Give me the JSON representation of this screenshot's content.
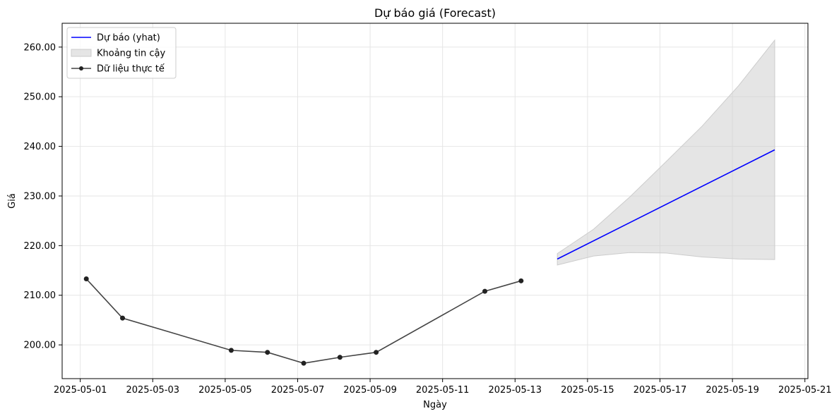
{
  "chart_data": {
    "type": "line",
    "title": "Dự báo giá (Forecast)",
    "xlabel": "Ngày",
    "ylabel": "Giá",
    "xlim": [
      "2025-04-30T12:00",
      "2025-05-21T02:00"
    ],
    "ylim": [
      193.2,
      264.8
    ],
    "x_ticks": [
      "2025-05-01",
      "2025-05-03",
      "2025-05-05",
      "2025-05-07",
      "2025-05-09",
      "2025-05-11",
      "2025-05-13",
      "2025-05-15",
      "2025-05-17",
      "2025-05-19",
      "2025-05-21"
    ],
    "y_ticks": [
      "200.00",
      "210.00",
      "220.00",
      "230.00",
      "240.00",
      "250.00",
      "260.00"
    ],
    "grid": true,
    "legend_position": "top-left",
    "series": [
      {
        "name": "Dữ liệu thực tế",
        "kind": "line-markers",
        "color": "#444444",
        "x": [
          "2025-05-01T04:00",
          "2025-05-02T04:00",
          "2025-05-05T04:00",
          "2025-05-06T04:00",
          "2025-05-07T04:00",
          "2025-05-08T04:00",
          "2025-05-09T04:00",
          "2025-05-12T04:00",
          "2025-05-13T04:00"
        ],
        "y": [
          213.3,
          205.4,
          198.9,
          198.5,
          196.3,
          197.5,
          198.5,
          210.8,
          212.9
        ]
      },
      {
        "name": "Dự báo (yhat)",
        "kind": "line",
        "color": "#0000ff",
        "x": [
          "2025-05-14T04:00",
          "2025-05-20T04:00"
        ],
        "y": [
          217.3,
          239.3
        ]
      },
      {
        "name": "Khoảng tin cậy",
        "kind": "band",
        "color": "#cccccc",
        "x": [
          "2025-05-14T04:00",
          "2025-05-15T04:00",
          "2025-05-16T04:00",
          "2025-05-17T04:00",
          "2025-05-18T04:00",
          "2025-05-19T04:00",
          "2025-05-20T04:00"
        ],
        "lower": [
          216.1,
          217.9,
          218.6,
          218.5,
          217.7,
          217.3,
          217.2
        ],
        "upper": [
          218.4,
          223.3,
          229.8,
          236.9,
          244.1,
          252.2,
          261.4
        ]
      }
    ]
  }
}
